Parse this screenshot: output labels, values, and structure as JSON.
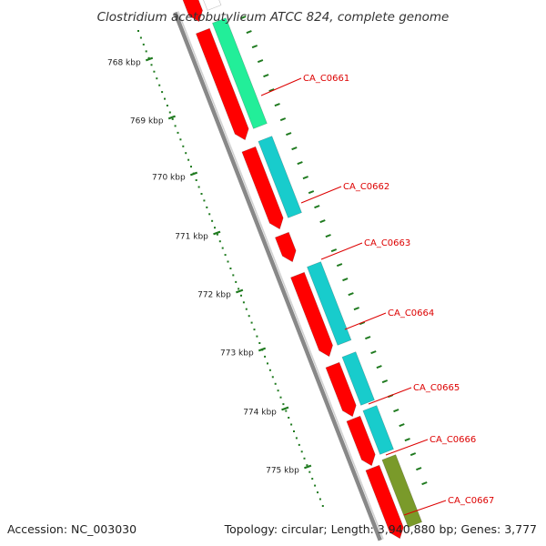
{
  "title": "Clostridium acetobutylicum ATCC 824, complete genome",
  "footer": {
    "accession": "Accession: NC_003030",
    "topology": "Topology: circular; Length: 3,940,880 bp; Genes: 3,777"
  },
  "colors": {
    "background": "#ffffff",
    "backbone": "#888888",
    "ruler": "#1f7a1f",
    "cds": "#ff0000",
    "gene_cyan": "#18cccc",
    "gene_green": "#22ee99",
    "gene_olive": "#7a9a2a",
    "label": "#dd0000"
  },
  "ruler_labels": [
    "768 kbp",
    "769 kbp",
    "770 kbp",
    "771 kbp",
    "772 kbp",
    "773 kbp",
    "774 kbp",
    "775 kbp"
  ],
  "genes": [
    {
      "name": "CA_C0661"
    },
    {
      "name": "CA_C0662"
    },
    {
      "name": "CA_C0663"
    },
    {
      "name": "CA_C0664"
    },
    {
      "name": "CA_C0665"
    },
    {
      "name": "CA_C0666"
    },
    {
      "name": "CA_C0667"
    }
  ]
}
